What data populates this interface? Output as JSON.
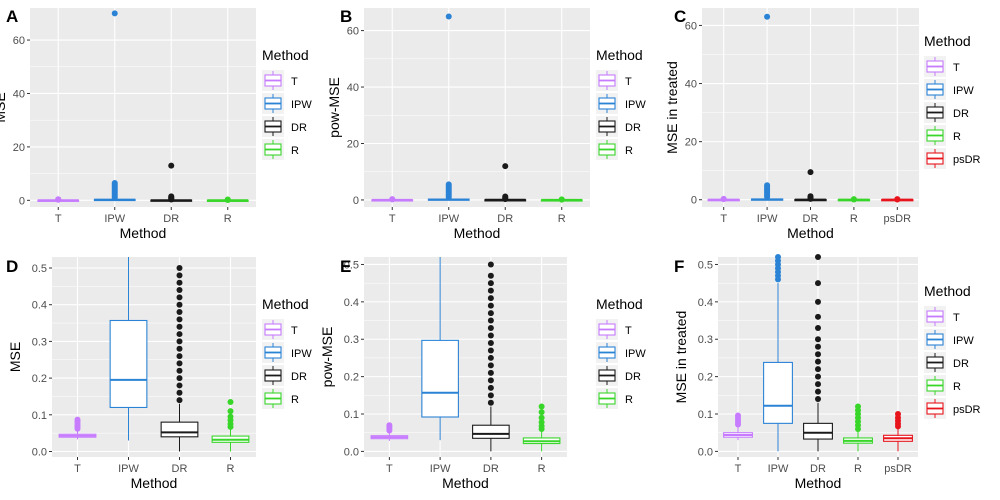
{
  "colors": {
    "T": "#c77cff",
    "IPW": "#2b83d6",
    "DR": "#1a1a1a",
    "R": "#39d62a",
    "psDR": "#e8141c",
    "panel_bg": "#ebebeb",
    "grid": "#ffffff"
  },
  "chart_data": [
    {
      "type": "boxplot",
      "tag": "A",
      "xlabel": "Method",
      "ylabel": "MSE",
      "ylim": [
        -2.5,
        72
      ],
      "yticks": [
        0,
        20,
        40,
        60
      ],
      "categories": [
        "T",
        "IPW",
        "DR",
        "R"
      ],
      "legend": {
        "title": "Method",
        "entries": [
          "T",
          "IPW",
          "DR",
          "R"
        ]
      },
      "boxes": [
        {
          "name": "T",
          "q1": 0.04,
          "median": 0.045,
          "q3": 0.05,
          "whisker_low": 0.03,
          "whisker_high": 0.08,
          "outliers": [
            0.2,
            0.3,
            0.4
          ]
        },
        {
          "name": "IPW",
          "q1": 0.12,
          "median": 0.2,
          "q3": 0.36,
          "whisker_low": 0.03,
          "whisker_high": 0.6,
          "outliers": [
            1,
            1.5,
            2,
            2.5,
            3,
            3.5,
            4,
            4.5,
            5,
            5.5,
            6,
            6.5,
            70
          ]
        },
        {
          "name": "DR",
          "q1": 0.03,
          "median": 0.05,
          "q3": 0.08,
          "whisker_low": 0.0,
          "whisker_high": 0.13,
          "outliers": [
            0.3,
            0.6,
            0.9,
            1.2,
            1.5,
            13
          ]
        },
        {
          "name": "R",
          "q1": 0.02,
          "median": 0.03,
          "q3": 0.04,
          "whisker_low": 0.0,
          "whisker_high": 0.06,
          "outliers": [
            0.1,
            0.2,
            0.3
          ]
        }
      ]
    },
    {
      "type": "boxplot",
      "tag": "B",
      "xlabel": "Method",
      "ylabel": "pow-MSE",
      "ylim": [
        -2.5,
        68
      ],
      "yticks": [
        0,
        20,
        40,
        60
      ],
      "categories": [
        "T",
        "IPW",
        "DR",
        "R"
      ],
      "legend": {
        "title": "Method",
        "entries": [
          "T",
          "IPW",
          "DR",
          "R"
        ]
      },
      "boxes": [
        {
          "name": "T",
          "q1": 0.03,
          "median": 0.04,
          "q3": 0.045,
          "whisker_low": 0.02,
          "whisker_high": 0.07,
          "outliers": [
            0.2,
            0.3
          ]
        },
        {
          "name": "IPW",
          "q1": 0.09,
          "median": 0.16,
          "q3": 0.3,
          "whisker_low": 0.03,
          "whisker_high": 0.52,
          "outliers": [
            1,
            1.5,
            2,
            2.5,
            3,
            3.5,
            4,
            4.5,
            5,
            5.5,
            65
          ]
        },
        {
          "name": "DR",
          "q1": 0.03,
          "median": 0.05,
          "q3": 0.07,
          "whisker_low": 0.0,
          "whisker_high": 0.12,
          "outliers": [
            0.3,
            0.6,
            0.9,
            1.2,
            12
          ]
        },
        {
          "name": "R",
          "q1": 0.02,
          "median": 0.025,
          "q3": 0.035,
          "whisker_low": 0.0,
          "whisker_high": 0.05,
          "outliers": [
            0.1,
            0.2
          ]
        }
      ]
    },
    {
      "type": "boxplot",
      "tag": "C",
      "xlabel": "Method",
      "ylabel": "MSE in treated",
      "ylim": [
        -2.5,
        66
      ],
      "yticks": [
        0,
        20,
        40,
        60
      ],
      "categories": [
        "T",
        "IPW",
        "DR",
        "R",
        "psDR"
      ],
      "legend": {
        "title": "Method",
        "entries": [
          "T",
          "IPW",
          "DR",
          "R",
          "psDR"
        ]
      },
      "boxes": [
        {
          "name": "T",
          "q1": 0.04,
          "median": 0.045,
          "q3": 0.05,
          "whisker_low": 0.03,
          "whisker_high": 0.09,
          "outliers": [
            0.2,
            0.3
          ]
        },
        {
          "name": "IPW",
          "q1": 0.08,
          "median": 0.12,
          "q3": 0.24,
          "whisker_low": 0.0,
          "whisker_high": 0.5,
          "outliers": [
            1,
            1.5,
            2,
            2.5,
            3,
            3.5,
            4,
            4.5,
            5,
            63
          ]
        },
        {
          "name": "DR",
          "q1": 0.03,
          "median": 0.05,
          "q3": 0.075,
          "whisker_low": 0.0,
          "whisker_high": 0.13,
          "outliers": [
            0.3,
            0.6,
            0.9,
            1.2,
            9.5
          ]
        },
        {
          "name": "R",
          "q1": 0.02,
          "median": 0.03,
          "q3": 0.04,
          "whisker_low": 0.0,
          "whisker_high": 0.06,
          "outliers": [
            0.1,
            0.2
          ]
        },
        {
          "name": "psDR",
          "q1": 0.025,
          "median": 0.035,
          "q3": 0.045,
          "whisker_low": 0.0,
          "whisker_high": 0.07,
          "outliers": [
            0.1,
            0.2
          ]
        }
      ]
    },
    {
      "type": "boxplot",
      "tag": "D",
      "xlabel": "Method",
      "ylabel": "MSE",
      "ylim": [
        -0.015,
        0.53
      ],
      "yticks": [
        0.0,
        0.1,
        0.2,
        0.3,
        0.4,
        0.5
      ],
      "categories": [
        "T",
        "IPW",
        "DR",
        "R"
      ],
      "legend": {
        "title": "Method",
        "entries": [
          "T",
          "IPW",
          "DR",
          "R"
        ]
      },
      "boxes": [
        {
          "name": "T",
          "q1": 0.039,
          "median": 0.043,
          "q3": 0.047,
          "whisker_low": 0.033,
          "whisker_high": 0.058,
          "outliers": [
            0.062,
            0.067,
            0.072,
            0.077,
            0.082,
            0.087
          ]
        },
        {
          "name": "IPW",
          "q1": 0.12,
          "median": 0.195,
          "q3": 0.357,
          "whisker_low": 0.03,
          "whisker_high": 0.53,
          "outliers": []
        },
        {
          "name": "DR",
          "q1": 0.04,
          "median": 0.052,
          "q3": 0.08,
          "whisker_low": 0.0,
          "whisker_high": 0.13,
          "outliers": [
            0.14,
            0.16,
            0.18,
            0.2,
            0.22,
            0.24,
            0.26,
            0.28,
            0.3,
            0.32,
            0.34,
            0.36,
            0.38,
            0.4,
            0.42,
            0.44,
            0.46,
            0.48,
            0.5
          ]
        },
        {
          "name": "R",
          "q1": 0.025,
          "median": 0.032,
          "q3": 0.042,
          "whisker_low": 0.0,
          "whisker_high": 0.063,
          "outliers": [
            0.067,
            0.075,
            0.085,
            0.095,
            0.11,
            0.135
          ]
        }
      ]
    },
    {
      "type": "boxplot",
      "tag": "E",
      "xlabel": "Method",
      "ylabel": "pow-MSE",
      "ylim": [
        -0.015,
        0.52
      ],
      "yticks": [
        0.0,
        0.1,
        0.2,
        0.3,
        0.4,
        0.5
      ],
      "categories": [
        "T",
        "IPW",
        "DR",
        "R"
      ],
      "legend": {
        "title": "Method",
        "entries": [
          "T",
          "IPW",
          "DR",
          "R"
        ]
      },
      "boxes": [
        {
          "name": "T",
          "q1": 0.034,
          "median": 0.038,
          "q3": 0.042,
          "whisker_low": 0.028,
          "whisker_high": 0.052,
          "outliers": [
            0.056,
            0.061,
            0.066,
            0.07
          ]
        },
        {
          "name": "IPW",
          "q1": 0.092,
          "median": 0.157,
          "q3": 0.297,
          "whisker_low": 0.03,
          "whisker_high": 0.52,
          "outliers": []
        },
        {
          "name": "DR",
          "q1": 0.035,
          "median": 0.047,
          "q3": 0.07,
          "whisker_low": 0.0,
          "whisker_high": 0.12,
          "outliers": [
            0.13,
            0.15,
            0.17,
            0.19,
            0.21,
            0.23,
            0.25,
            0.27,
            0.29,
            0.31,
            0.33,
            0.35,
            0.37,
            0.39,
            0.41,
            0.43,
            0.45,
            0.47,
            0.5
          ]
        },
        {
          "name": "R",
          "q1": 0.021,
          "median": 0.027,
          "q3": 0.036,
          "whisker_low": 0.0,
          "whisker_high": 0.055,
          "outliers": [
            0.06,
            0.068,
            0.078,
            0.09,
            0.105,
            0.12
          ]
        }
      ]
    },
    {
      "type": "boxplot",
      "tag": "F",
      "xlabel": "Method",
      "ylabel": "MSE in treated",
      "ylim": [
        -0.015,
        0.52
      ],
      "yticks": [
        0.0,
        0.1,
        0.2,
        0.3,
        0.4,
        0.5
      ],
      "categories": [
        "T",
        "IPW",
        "DR",
        "R",
        "psDR"
      ],
      "legend": {
        "title": "Method",
        "entries": [
          "T",
          "IPW",
          "DR",
          "R",
          "psDR"
        ]
      },
      "boxes": [
        {
          "name": "T",
          "q1": 0.038,
          "median": 0.044,
          "q3": 0.05,
          "whisker_low": 0.03,
          "whisker_high": 0.068,
          "outliers": [
            0.072,
            0.078,
            0.084,
            0.09,
            0.096
          ]
        },
        {
          "name": "IPW",
          "q1": 0.075,
          "median": 0.122,
          "q3": 0.238,
          "whisker_low": 0.0,
          "whisker_high": 0.45,
          "outliers": [
            0.46,
            0.47,
            0.48,
            0.49,
            0.5,
            0.51,
            0.52
          ]
        },
        {
          "name": "DR",
          "q1": 0.033,
          "median": 0.05,
          "q3": 0.075,
          "whisker_low": 0.0,
          "whisker_high": 0.13,
          "outliers": [
            0.14,
            0.16,
            0.18,
            0.2,
            0.22,
            0.24,
            0.26,
            0.28,
            0.3,
            0.33,
            0.36,
            0.4,
            0.45,
            0.52
          ]
        },
        {
          "name": "R",
          "q1": 0.022,
          "median": 0.028,
          "q3": 0.036,
          "whisker_low": 0.0,
          "whisker_high": 0.055,
          "outliers": [
            0.06,
            0.07,
            0.08,
            0.09,
            0.1,
            0.11,
            0.12
          ]
        },
        {
          "name": "psDR",
          "q1": 0.027,
          "median": 0.035,
          "q3": 0.043,
          "whisker_low": 0.0,
          "whisker_high": 0.062,
          "outliers": [
            0.067,
            0.074,
            0.082,
            0.09,
            0.1
          ]
        }
      ]
    }
  ]
}
